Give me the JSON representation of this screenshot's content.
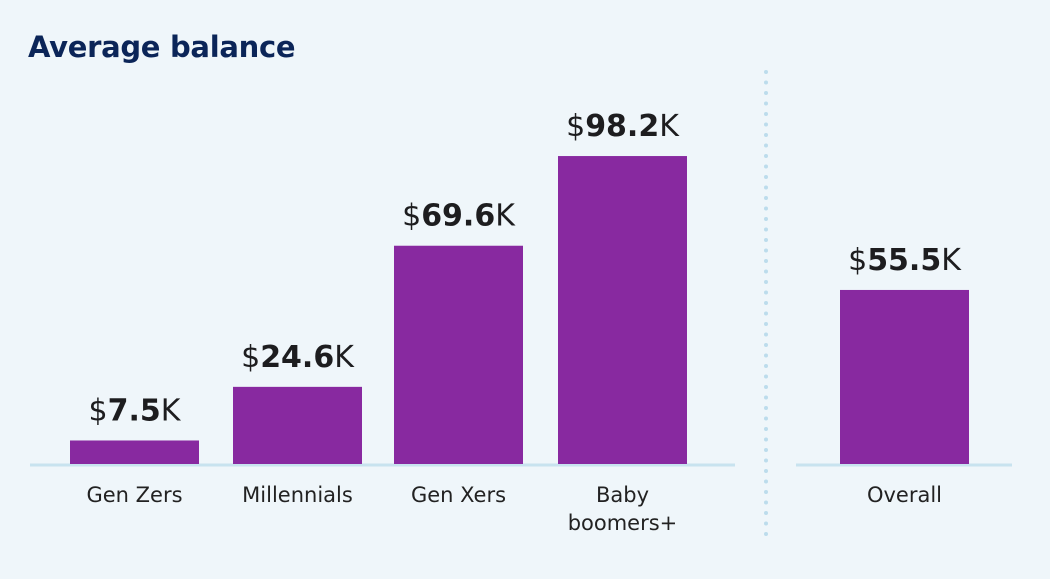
{
  "chart_data": {
    "type": "bar",
    "title": "Average balance",
    "categories": [
      "Gen Zers",
      "Millennials",
      "Gen Xers",
      "Baby boomers+",
      "Overall"
    ],
    "category_lines": [
      [
        "Gen Zers"
      ],
      [
        "Millennials"
      ],
      [
        "Gen Xers"
      ],
      [
        "Baby",
        "boomers+"
      ],
      [
        "Overall"
      ]
    ],
    "values": [
      7.5,
      24.6,
      69.6,
      98.2,
      55.5
    ],
    "value_labels": [
      "$7.5K",
      "$24.6K",
      "$69.6K",
      "$98.2K",
      "$55.5K"
    ],
    "unit_prefix": "$",
    "unit_suffix": "K",
    "groups": [
      [
        "Gen Zers",
        "Millennials",
        "Gen Xers",
        "Baby boomers+"
      ],
      [
        "Overall"
      ]
    ],
    "ylim": [
      0,
      100
    ],
    "grid": false,
    "legend": "none",
    "colors": {
      "bar": "#8829a0",
      "baseline": "#c8e3ef",
      "divider": "#bcdcec",
      "title": "#0b2558",
      "background": "#eff6fa"
    }
  }
}
